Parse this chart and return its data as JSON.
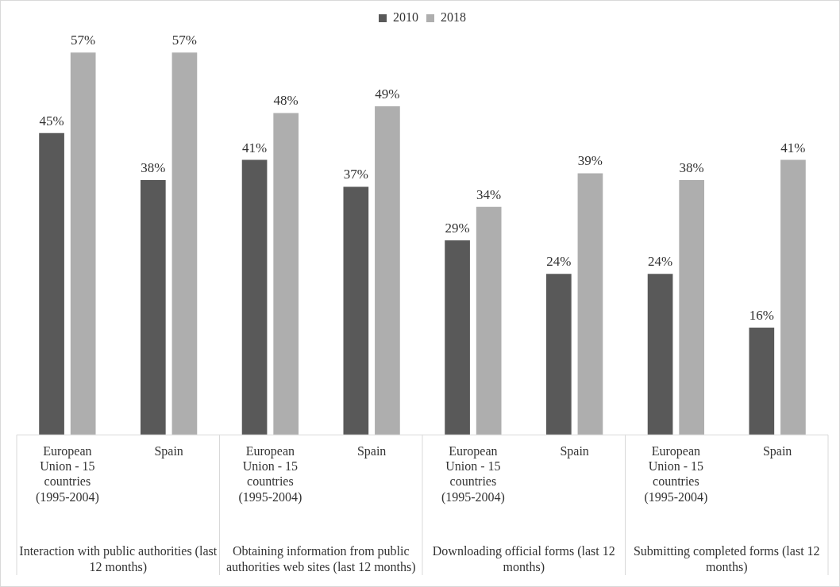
{
  "chart_data": {
    "type": "bar",
    "categories": [
      "European Union - 15 countries (1995-2004)",
      "Spain",
      "European Union - 15 countries (1995-2004)",
      "Spain",
      "European Union - 15 countries (1995-2004)",
      "Spain",
      "European Union - 15 countries (1995-2004)",
      "Spain"
    ],
    "series": [
      {
        "name": "2010",
        "color": "#595959",
        "values": [
          45,
          38,
          41,
          37,
          29,
          24,
          24,
          16
        ],
        "value_labels": [
          "45%",
          "38%",
          "41%",
          "37%",
          "29%",
          "24%",
          "24%",
          "16%"
        ]
      },
      {
        "name": "2018",
        "color": "#aeaeae",
        "values": [
          57,
          57,
          48,
          49,
          34,
          39,
          38,
          41
        ],
        "value_labels": [
          "57%",
          "57%",
          "48%",
          "49%",
          "34%",
          "39%",
          "38%",
          "41%"
        ]
      }
    ],
    "annotations": [
      "Interaction with public authorities (last 12 months)",
      "Obtaining information from public authorities web sites (last 12 months)",
      "Downloading official forms (last 12 months)",
      "Submitting completed forms (last 12 months)"
    ],
    "legend": "top",
    "grid": false
  }
}
